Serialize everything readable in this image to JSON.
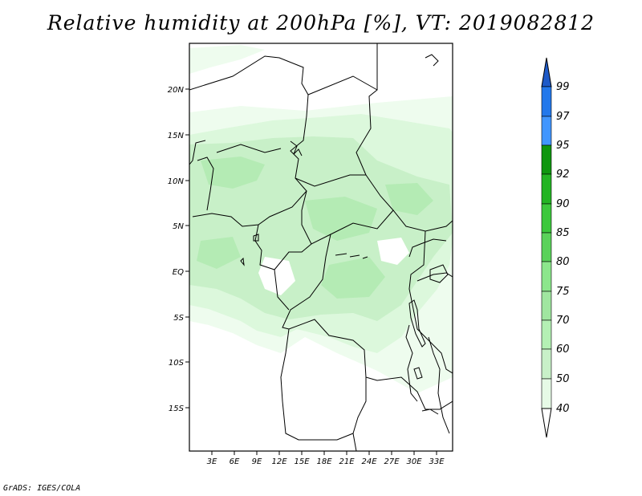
{
  "title": "Relative humidity at 200hPa [%], VT: 2019082812",
  "footer": "GrADS: IGES/COLA",
  "axes": {
    "lat_labels": [
      "20N",
      "15N",
      "10N",
      "5N",
      "EQ",
      "5S",
      "10S",
      "15S"
    ],
    "lon_labels": [
      "3E",
      "6E",
      "9E",
      "12E",
      "15E",
      "18E",
      "21E",
      "24E",
      "27E",
      "30E",
      "33E"
    ]
  },
  "colorbar": {
    "levels": [
      "40",
      "50",
      "60",
      "70",
      "75",
      "80",
      "85",
      "90",
      "92",
      "95",
      "97",
      "99"
    ],
    "colors": [
      "#e6fae6",
      "#c8f0c8",
      "#b4f0b4",
      "#a0e6a0",
      "#8ce68c",
      "#5ad25a",
      "#3cc83c",
      "#23b423",
      "#0f960f",
      "#4196ff",
      "#2378eb",
      "#1e5ac8"
    ]
  },
  "map_colors": {
    "very_light": "#eefcee",
    "light": "#dcf8dc",
    "medium": "#c8f0c8",
    "medium_dark": "#b4ebb4"
  }
}
